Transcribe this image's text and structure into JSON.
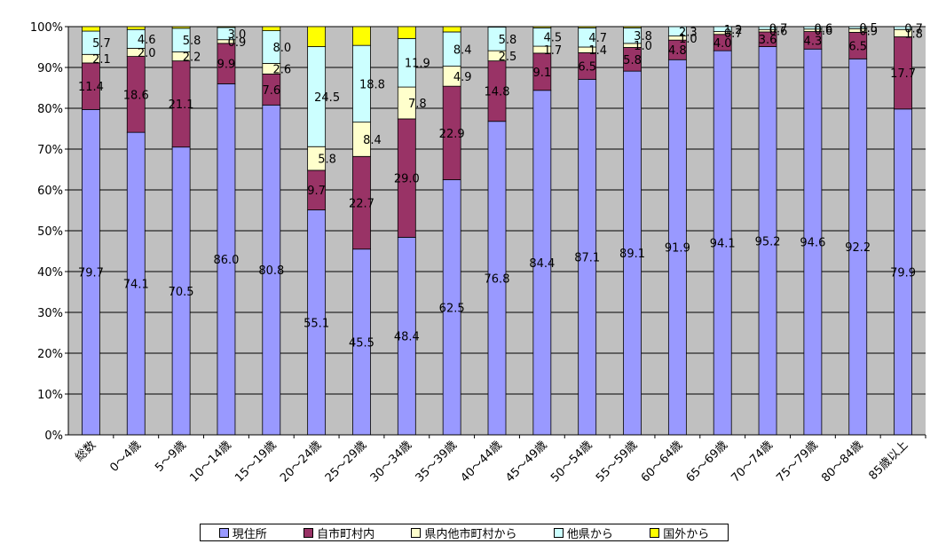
{
  "chart_data": {
    "type": "bar",
    "stacked": true,
    "percent": true,
    "categories": [
      "総数",
      "0～4歳",
      "5～9歳",
      "10～14歳",
      "15～19歳",
      "20～24歳",
      "25～29歳",
      "30～34歳",
      "35～39歳",
      "40～44歳",
      "45～49歳",
      "50～54歳",
      "55～59歳",
      "60～64歳",
      "65～69歳",
      "70～74歳",
      "75～79歳",
      "80～84歳",
      "85歳以上"
    ],
    "ylim": [
      0,
      100
    ],
    "yticks": [
      "0%",
      "10%",
      "20%",
      "30%",
      "40%",
      "50%",
      "60%",
      "70%",
      "80%",
      "90%",
      "100%"
    ],
    "legend_position": "bottom",
    "series": [
      {
        "name": "現住所",
        "color": "#9999ff",
        "values": [
          79.7,
          74.1,
          70.5,
          86.0,
          80.8,
          55.1,
          45.5,
          48.4,
          62.5,
          76.8,
          84.4,
          87.1,
          89.1,
          91.9,
          94.1,
          95.2,
          94.6,
          92.2,
          79.9
        ],
        "labels": [
          "79.7",
          "74.1",
          "70.5",
          "86.0",
          "80.8",
          "55.1",
          "45.5",
          "48.4",
          "62.5",
          "76.8",
          "84.4",
          "87.1",
          "89.1",
          "91.9",
          "94.1",
          "95.2",
          "94.6",
          "92.2",
          "79.9"
        ]
      },
      {
        "name": "自市町村内",
        "color": "#993366",
        "values": [
          11.4,
          18.6,
          21.1,
          9.9,
          7.6,
          9.7,
          22.7,
          29.0,
          22.9,
          14.8,
          9.1,
          6.5,
          5.8,
          4.8,
          4.0,
          3.6,
          4.3,
          6.5,
          17.7
        ],
        "labels": [
          "11.4",
          "18.6",
          "21.1",
          "9.9",
          "7.6",
          "9.7",
          "22.7",
          "29.0",
          "22.9",
          "14.8",
          "9.1",
          "6.5",
          "5.8",
          "4.8",
          "4.0",
          "3.6",
          "4.3",
          "6.5",
          "17.7"
        ]
      },
      {
        "name": "県内他市町村から",
        "color": "#ffffcc",
        "values": [
          2.1,
          2.0,
          2.2,
          0.9,
          2.6,
          5.8,
          8.4,
          7.8,
          4.9,
          2.5,
          1.7,
          1.4,
          1.0,
          1.0,
          0.7,
          0.6,
          0.6,
          0.9,
          1.8
        ],
        "labels": [
          "2.1",
          "2.0",
          "2.2",
          "0.9",
          "2.6",
          "5.8",
          "8.4",
          "7.8",
          "4.9",
          "2.5",
          "1.7",
          "1.4",
          "1.0",
          "1.0",
          "0.7",
          "0.6",
          "0.6",
          "0.9",
          "1.8"
        ]
      },
      {
        "name": "他県から",
        "color": "#ccffff",
        "values": [
          5.7,
          4.6,
          5.8,
          3.0,
          8.0,
          24.5,
          18.8,
          11.9,
          8.4,
          5.8,
          4.5,
          4.7,
          3.8,
          2.3,
          1.2,
          0.7,
          0.6,
          0.5,
          0.7
        ],
        "labels": [
          "5.7",
          "4.6",
          "5.8",
          "3.0",
          "8.0",
          "24.5",
          "18.8",
          "11.9",
          "8.4",
          "5.8",
          "4.5",
          "4.7",
          "3.8",
          "2.3",
          "1.2",
          "0.7",
          "0.6",
          "0.5",
          "0.7"
        ]
      },
      {
        "name": "国外から",
        "color": "#ffff00",
        "values": [
          1.1,
          0.7,
          0.4,
          0.2,
          1.0,
          4.9,
          4.6,
          2.9,
          1.3,
          0.1,
          0.3,
          0.3,
          0.3,
          0.0,
          0.0,
          0.0,
          0.0,
          0.0,
          0.0
        ],
        "labels": []
      }
    ]
  }
}
